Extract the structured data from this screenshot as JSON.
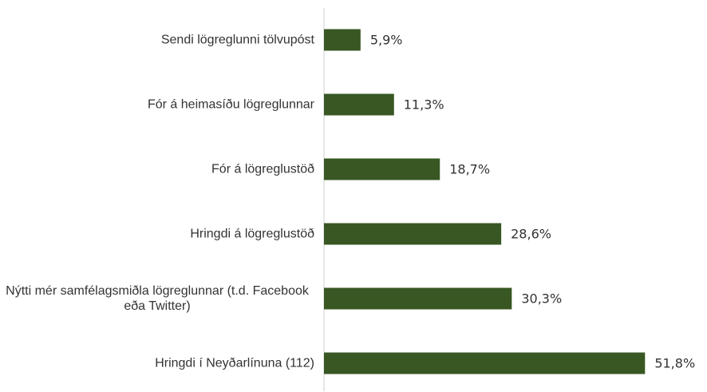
{
  "chart_data": {
    "type": "barh",
    "categories": [
      "Sendi lögreglunni tölvupóst",
      "Fór á heimasíðu lögreglunnar",
      "Fór á lögreglustöð",
      "Hringdi á lögreglustöð",
      "Nýtti mér samfélagsmiðla lögreglunnar (t.d. Facebook eða Twitter)",
      "Hringdi í Neyðarlínuna (112)"
    ],
    "values": [
      5.9,
      11.3,
      18.7,
      28.6,
      30.3,
      51.8
    ],
    "value_labels": [
      "5,9%",
      "11,3%",
      "18,7%",
      "28,6%",
      "30,3%",
      "51,8%"
    ],
    "color": "#385723",
    "xlim": [
      0,
      60
    ]
  }
}
